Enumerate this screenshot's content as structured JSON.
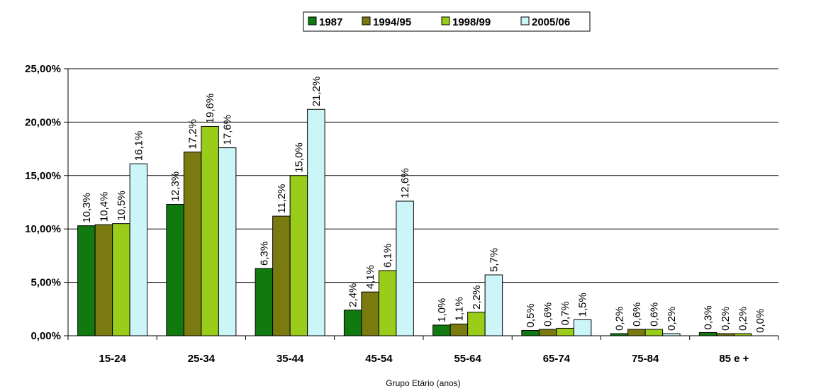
{
  "chart_data": {
    "type": "bar",
    "title": "",
    "xlabel": "Grupo Etário (anos)",
    "ylabel": "",
    "categories": [
      "15-24",
      "25-34",
      "35-44",
      "45-54",
      "55-64",
      "65-74",
      "75-84",
      "85 e +"
    ],
    "ylim": [
      0,
      25
    ],
    "yticks": [
      "0,00%",
      "5,00%",
      "10,00%",
      "15,00%",
      "20,00%",
      "25,00%"
    ],
    "grid": true,
    "legend_position": "top-center",
    "series": [
      {
        "name": "1987",
        "color": "#107a10",
        "values": [
          10.3,
          12.3,
          6.3,
          2.4,
          1.0,
          0.5,
          0.2,
          0.3
        ],
        "labels": [
          "10,3%",
          "12,3%",
          "6,3%",
          "2,4%",
          "1,0%",
          "0,5%",
          "0,2%",
          "0,3%"
        ]
      },
      {
        "name": "1994/95",
        "color": "#7a7a10",
        "values": [
          10.4,
          17.2,
          11.2,
          4.1,
          1.1,
          0.6,
          0.6,
          0.2
        ],
        "labels": [
          "10,4%",
          "17,2%",
          "11,2%",
          "4,1%",
          "1,1%",
          "0,6%",
          "0,6%",
          "0,2%"
        ]
      },
      {
        "name": "1998/99",
        "color": "#9acd1a",
        "values": [
          10.5,
          19.6,
          15.0,
          6.1,
          2.2,
          0.7,
          0.6,
          0.2
        ],
        "labels": [
          "10,5%",
          "19,6%",
          "15,0%",
          "6,1%",
          "2,2%",
          "0,7%",
          "0,6%",
          "0,2%"
        ]
      },
      {
        "name": "2005/06",
        "color": "#ccf5f8",
        "values": [
          16.1,
          17.6,
          21.2,
          12.6,
          5.7,
          1.5,
          0.2,
          0.0
        ],
        "labels": [
          "16,1%",
          "17,6%",
          "21,2%",
          "12,6%",
          "5,7%",
          "1,5%",
          "0,2%",
          "0,0%"
        ]
      }
    ]
  }
}
